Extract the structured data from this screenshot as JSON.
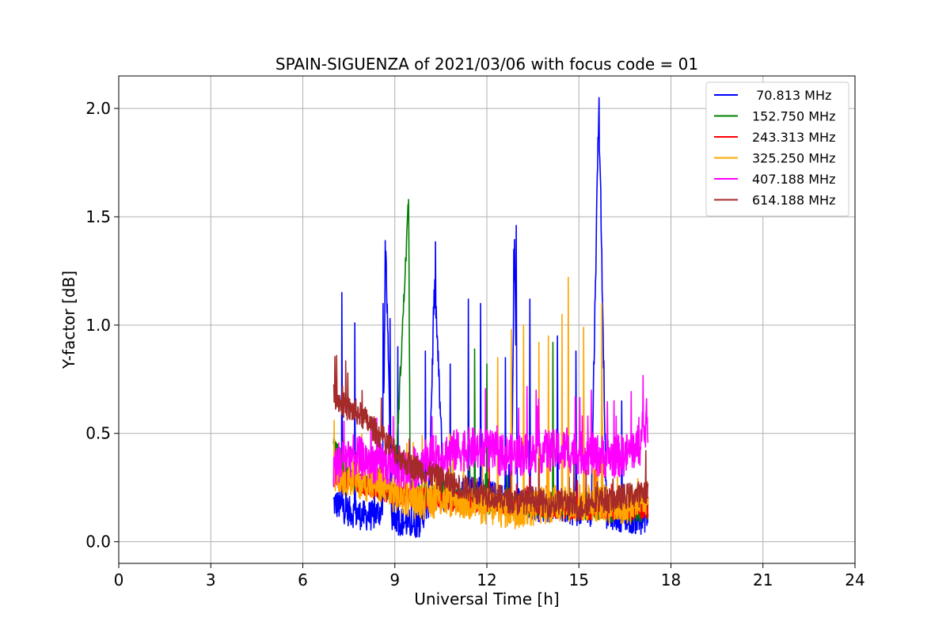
{
  "chart_data": {
    "type": "line",
    "title": "SPAIN-SIGUENZA of 2021/03/06 with focus code = 01",
    "xlabel": "Universal Time [h]",
    "ylabel": "Y-factor [dB]",
    "xlim": [
      0,
      24
    ],
    "ylim": [
      -0.1,
      2.15
    ],
    "xticks": [
      0,
      3,
      6,
      9,
      12,
      15,
      18,
      21,
      24
    ],
    "yticks": [
      0.0,
      0.5,
      1.0,
      1.5,
      2.0
    ],
    "xtick_labels": [
      "0",
      "3",
      "6",
      "9",
      "12",
      "15",
      "18",
      "21",
      "24"
    ],
    "ytick_labels": [
      "0.0",
      "0.5",
      "1.0",
      "1.5",
      "2.0"
    ],
    "grid": true,
    "legend_position": "top-right",
    "series": [
      {
        "name": " 70.813 MHz",
        "color": "#0000ff",
        "x": [
          7.0,
          7.25,
          7.5,
          7.75,
          8.0,
          8.3,
          8.6,
          8.7,
          8.9,
          9.1,
          9.5,
          9.8,
          10.1,
          10.3,
          10.6,
          10.9,
          11.2,
          11.6,
          12.0,
          12.4,
          12.8,
          12.9,
          13.0,
          13.4,
          13.8,
          14.2,
          14.6,
          15.0,
          15.4,
          15.65,
          15.9,
          16.2,
          16.6,
          17.0,
          17.25
        ],
        "y": [
          0.18,
          0.16,
          0.14,
          0.13,
          0.12,
          0.12,
          0.15,
          1.39,
          0.12,
          0.1,
          0.08,
          0.09,
          0.18,
          1.21,
          0.2,
          0.22,
          0.25,
          0.24,
          0.22,
          0.2,
          0.2,
          1.46,
          0.18,
          0.17,
          0.16,
          0.16,
          0.15,
          0.14,
          0.14,
          2.05,
          0.13,
          0.12,
          0.11,
          0.1,
          0.12
        ],
        "peaks": [
          {
            "x": 7.27,
            "y": 1.15
          },
          {
            "x": 7.7,
            "y": 1.01
          },
          {
            "x": 8.62,
            "y": 1.1
          },
          {
            "x": 8.69,
            "y": 1.39
          },
          {
            "x": 8.85,
            "y": 1.03
          },
          {
            "x": 9.1,
            "y": 0.9
          },
          {
            "x": 10.0,
            "y": 0.88
          },
          {
            "x": 10.3,
            "y": 1.21
          },
          {
            "x": 10.8,
            "y": 0.82
          },
          {
            "x": 11.4,
            "y": 1.12
          },
          {
            "x": 11.8,
            "y": 1.1
          },
          {
            "x": 12.6,
            "y": 0.85
          },
          {
            "x": 12.88,
            "y": 1.35
          },
          {
            "x": 12.96,
            "y": 1.46
          },
          {
            "x": 13.4,
            "y": 1.12
          },
          {
            "x": 14.3,
            "y": 0.95
          },
          {
            "x": 14.9,
            "y": 0.88
          },
          {
            "x": 15.65,
            "y": 2.05
          },
          {
            "x": 16.4,
            "y": 0.65
          }
        ]
      },
      {
        "name": "152.750 MHz",
        "color": "#008000",
        "x": [
          7.0,
          7.5,
          8.0,
          8.5,
          9.0,
          9.45,
          9.5,
          10.0,
          11.0,
          12.0,
          13.0,
          14.0,
          15.0,
          16.0,
          17.25
        ],
        "y": [
          0.45,
          0.3,
          0.27,
          0.25,
          0.24,
          1.58,
          0.24,
          0.22,
          0.2,
          0.18,
          0.17,
          0.16,
          0.15,
          0.14,
          0.14
        ],
        "peaks": [
          {
            "x": 9.45,
            "y": 1.58
          },
          {
            "x": 11.6,
            "y": 0.89
          },
          {
            "x": 12.0,
            "y": 0.82
          },
          {
            "x": 14.15,
            "y": 0.92
          }
        ]
      },
      {
        "name": "243.313 MHz",
        "color": "#ff0000",
        "x": [
          7.0,
          8.0,
          9.0,
          10.0,
          11.0,
          12.0,
          13.0,
          14.0,
          15.0,
          16.0,
          17.25
        ],
        "y": [
          0.3,
          0.26,
          0.22,
          0.2,
          0.19,
          0.18,
          0.17,
          0.16,
          0.15,
          0.15,
          0.15
        ],
        "peaks": []
      },
      {
        "name": "325.250 MHz",
        "color": "#ffa500",
        "x": [
          7.0,
          7.5,
          8.0,
          8.5,
          9.0,
          9.5,
          10.0,
          10.5,
          11.0,
          11.5,
          12.0,
          12.5,
          13.0,
          13.5,
          14.0,
          14.5,
          15.0,
          15.5,
          16.0,
          16.5,
          17.25
        ],
        "y": [
          0.32,
          0.3,
          0.28,
          0.26,
          0.22,
          0.2,
          0.19,
          0.2,
          0.2,
          0.18,
          0.16,
          0.15,
          0.15,
          0.16,
          0.17,
          0.18,
          0.18,
          0.18,
          0.17,
          0.16,
          0.2
        ],
        "peaks": [
          {
            "x": 12.35,
            "y": 0.85
          },
          {
            "x": 12.8,
            "y": 0.98
          },
          {
            "x": 13.2,
            "y": 1.0
          },
          {
            "x": 13.7,
            "y": 0.92
          },
          {
            "x": 14.0,
            "y": 0.95
          },
          {
            "x": 14.45,
            "y": 1.05
          },
          {
            "x": 14.65,
            "y": 1.22
          },
          {
            "x": 15.15,
            "y": 0.99
          },
          {
            "x": 15.75,
            "y": 1.1
          }
        ]
      },
      {
        "name": "407.188 MHz",
        "color": "#ff00ff",
        "x": [
          7.0,
          7.5,
          8.0,
          8.5,
          9.0,
          9.5,
          10.0,
          10.5,
          11.0,
          11.5,
          12.0,
          12.5,
          13.0,
          13.5,
          14.0,
          14.5,
          15.0,
          15.5,
          16.0,
          16.5,
          17.0,
          17.25
        ],
        "y": [
          0.35,
          0.4,
          0.38,
          0.36,
          0.35,
          0.33,
          0.38,
          0.4,
          0.42,
          0.43,
          0.42,
          0.4,
          0.4,
          0.41,
          0.42,
          0.42,
          0.41,
          0.4,
          0.39,
          0.4,
          0.45,
          0.55
        ],
        "peaks": [
          {
            "x": 13.6,
            "y": 0.7
          },
          {
            "x": 15.4,
            "y": 0.7
          },
          {
            "x": 17.2,
            "y": 0.66
          }
        ]
      },
      {
        "name": "614.188 MHz",
        "color": "#a52a2a",
        "x": [
          7.0,
          7.25,
          7.5,
          7.75,
          8.0,
          8.25,
          8.5,
          8.75,
          9.0,
          9.25,
          9.5,
          9.75,
          10.0,
          10.5,
          11.0,
          11.5,
          12.0,
          12.5,
          13.0,
          13.5,
          14.0,
          14.5,
          15.0,
          15.5,
          16.0,
          16.5,
          17.0,
          17.25
        ],
        "y": [
          0.68,
          0.64,
          0.61,
          0.6,
          0.57,
          0.53,
          0.49,
          0.46,
          0.42,
          0.38,
          0.35,
          0.34,
          0.32,
          0.29,
          0.26,
          0.24,
          0.22,
          0.2,
          0.18,
          0.2,
          0.17,
          0.19,
          0.15,
          0.2,
          0.19,
          0.21,
          0.22,
          0.24
        ],
        "peaks": [
          {
            "x": 7.1,
            "y": 0.86
          }
        ]
      }
    ]
  }
}
